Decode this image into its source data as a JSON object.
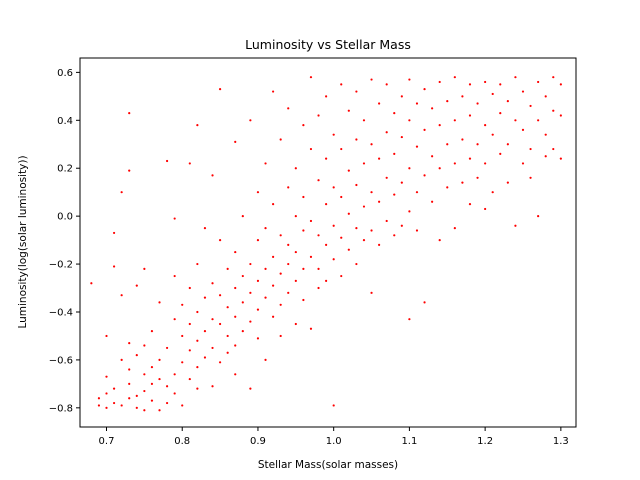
{
  "chart_data": {
    "type": "scatter",
    "title": "Luminosity vs Stellar Mass",
    "xlabel": "Stellar Mass(solar masses)",
    "ylabel": "Luminosity(log(solar luminosity))",
    "xlim": [
      0.665,
      1.32
    ],
    "ylim": [
      -0.88,
      0.66
    ],
    "xticks": [
      0.7,
      0.8,
      0.9,
      1.0,
      1.1,
      1.2,
      1.3
    ],
    "xtick_labels": [
      "0.7",
      "0.8",
      "0.9",
      "1.0",
      "1.1",
      "1.2",
      "1.3"
    ],
    "yticks": [
      -0.8,
      -0.6,
      -0.4,
      -0.2,
      0.0,
      0.2,
      0.4,
      0.6
    ],
    "ytick_labels": [
      "−0.8",
      "−0.6",
      "−0.4",
      "−0.2",
      "0.0",
      "0.2",
      "0.4",
      "0.6"
    ],
    "grid": false,
    "marker_color": "#ff0000",
    "series": [
      {
        "values": [
          {
            "x": 0.68,
            "y": -0.28
          },
          {
            "x": 0.69,
            "y": -0.79
          },
          {
            "x": 0.69,
            "y": -0.76
          },
          {
            "x": 0.7,
            "y": -0.8
          },
          {
            "x": 0.7,
            "y": -0.74
          },
          {
            "x": 0.7,
            "y": -0.67
          },
          {
            "x": 0.7,
            "y": -0.5
          },
          {
            "x": 0.71,
            "y": -0.21
          },
          {
            "x": 0.71,
            "y": -0.07
          },
          {
            "x": 0.71,
            "y": -0.78
          },
          {
            "x": 0.71,
            "y": -0.72
          },
          {
            "x": 0.72,
            "y": 0.1
          },
          {
            "x": 0.72,
            "y": -0.6
          },
          {
            "x": 0.72,
            "y": -0.79
          },
          {
            "x": 0.72,
            "y": -0.33
          },
          {
            "x": 0.73,
            "y": 0.43
          },
          {
            "x": 0.73,
            "y": 0.19
          },
          {
            "x": 0.73,
            "y": -0.76
          },
          {
            "x": 0.73,
            "y": -0.7
          },
          {
            "x": 0.73,
            "y": -0.64
          },
          {
            "x": 0.73,
            "y": -0.53
          },
          {
            "x": 0.74,
            "y": -0.8
          },
          {
            "x": 0.74,
            "y": -0.75
          },
          {
            "x": 0.74,
            "y": -0.58
          },
          {
            "x": 0.74,
            "y": -0.29
          },
          {
            "x": 0.75,
            "y": -0.22
          },
          {
            "x": 0.75,
            "y": -0.81
          },
          {
            "x": 0.75,
            "y": -0.73
          },
          {
            "x": 0.75,
            "y": -0.66
          },
          {
            "x": 0.75,
            "y": -0.54
          },
          {
            "x": 0.76,
            "y": -0.48
          },
          {
            "x": 0.76,
            "y": -0.63
          },
          {
            "x": 0.76,
            "y": -0.77
          },
          {
            "x": 0.76,
            "y": -0.7
          },
          {
            "x": 0.77,
            "y": -0.81
          },
          {
            "x": 0.77,
            "y": -0.68
          },
          {
            "x": 0.77,
            "y": -0.6
          },
          {
            "x": 0.77,
            "y": -0.36
          },
          {
            "x": 0.78,
            "y": 0.23
          },
          {
            "x": 0.78,
            "y": -0.78
          },
          {
            "x": 0.78,
            "y": -0.71
          },
          {
            "x": 0.78,
            "y": -0.55
          },
          {
            "x": 0.79,
            "y": -0.01
          },
          {
            "x": 0.79,
            "y": -0.25
          },
          {
            "x": 0.79,
            "y": -0.43
          },
          {
            "x": 0.79,
            "y": -0.66
          },
          {
            "x": 0.79,
            "y": -0.74
          },
          {
            "x": 0.8,
            "y": -0.61
          },
          {
            "x": 0.8,
            "y": -0.5
          },
          {
            "x": 0.8,
            "y": -0.79
          },
          {
            "x": 0.8,
            "y": -0.37
          },
          {
            "x": 0.81,
            "y": 0.22
          },
          {
            "x": 0.81,
            "y": -0.3
          },
          {
            "x": 0.81,
            "y": -0.45
          },
          {
            "x": 0.81,
            "y": -0.56
          },
          {
            "x": 0.81,
            "y": -0.68
          },
          {
            "x": 0.82,
            "y": 0.38
          },
          {
            "x": 0.82,
            "y": -0.2
          },
          {
            "x": 0.82,
            "y": -0.4
          },
          {
            "x": 0.82,
            "y": -0.52
          },
          {
            "x": 0.82,
            "y": -0.63
          },
          {
            "x": 0.82,
            "y": -0.72
          },
          {
            "x": 0.83,
            "y": -0.05
          },
          {
            "x": 0.83,
            "y": -0.34
          },
          {
            "x": 0.83,
            "y": -0.48
          },
          {
            "x": 0.83,
            "y": -0.59
          },
          {
            "x": 0.84,
            "y": 0.17
          },
          {
            "x": 0.84,
            "y": -0.28
          },
          {
            "x": 0.84,
            "y": -0.43
          },
          {
            "x": 0.84,
            "y": -0.55
          },
          {
            "x": 0.84,
            "y": -0.71
          },
          {
            "x": 0.85,
            "y": 0.53
          },
          {
            "x": 0.85,
            "y": -0.1
          },
          {
            "x": 0.85,
            "y": -0.33
          },
          {
            "x": 0.85,
            "y": -0.45
          },
          {
            "x": 0.85,
            "y": -0.61
          },
          {
            "x": 0.86,
            "y": -0.22
          },
          {
            "x": 0.86,
            "y": -0.38
          },
          {
            "x": 0.86,
            "y": -0.5
          },
          {
            "x": 0.86,
            "y": -0.57
          },
          {
            "x": 0.87,
            "y": 0.31
          },
          {
            "x": 0.87,
            "y": -0.15
          },
          {
            "x": 0.87,
            "y": -0.3
          },
          {
            "x": 0.87,
            "y": -0.42
          },
          {
            "x": 0.87,
            "y": -0.54
          },
          {
            "x": 0.87,
            "y": -0.66
          },
          {
            "x": 0.88,
            "y": 0.0
          },
          {
            "x": 0.88,
            "y": -0.25
          },
          {
            "x": 0.88,
            "y": -0.36
          },
          {
            "x": 0.88,
            "y": -0.48
          },
          {
            "x": 0.89,
            "y": 0.4
          },
          {
            "x": 0.89,
            "y": -0.2
          },
          {
            "x": 0.89,
            "y": -0.32
          },
          {
            "x": 0.89,
            "y": -0.44
          },
          {
            "x": 0.89,
            "y": -0.72
          },
          {
            "x": 0.9,
            "y": 0.1
          },
          {
            "x": 0.9,
            "y": -0.1
          },
          {
            "x": 0.9,
            "y": -0.27
          },
          {
            "x": 0.9,
            "y": -0.39
          },
          {
            "x": 0.9,
            "y": -0.51
          },
          {
            "x": 0.91,
            "y": 0.22
          },
          {
            "x": 0.91,
            "y": -0.05
          },
          {
            "x": 0.91,
            "y": -0.22
          },
          {
            "x": 0.91,
            "y": -0.34
          },
          {
            "x": 0.91,
            "y": -0.6
          },
          {
            "x": 0.92,
            "y": 0.52
          },
          {
            "x": 0.92,
            "y": 0.05
          },
          {
            "x": 0.92,
            "y": -0.17
          },
          {
            "x": 0.92,
            "y": -0.29
          },
          {
            "x": 0.92,
            "y": -0.42
          },
          {
            "x": 0.93,
            "y": 0.32
          },
          {
            "x": 0.93,
            "y": -0.08
          },
          {
            "x": 0.93,
            "y": -0.24
          },
          {
            "x": 0.93,
            "y": -0.37
          },
          {
            "x": 0.93,
            "y": -0.5
          },
          {
            "x": 0.94,
            "y": 0.45
          },
          {
            "x": 0.94,
            "y": 0.12
          },
          {
            "x": 0.94,
            "y": -0.12
          },
          {
            "x": 0.94,
            "y": -0.2
          },
          {
            "x": 0.94,
            "y": -0.32
          },
          {
            "x": 0.95,
            "y": 0.2
          },
          {
            "x": 0.95,
            "y": 0.0
          },
          {
            "x": 0.95,
            "y": -0.15
          },
          {
            "x": 0.95,
            "y": -0.27
          },
          {
            "x": 0.95,
            "y": -0.45
          },
          {
            "x": 0.96,
            "y": 0.38
          },
          {
            "x": 0.96,
            "y": 0.08
          },
          {
            "x": 0.96,
            "y": -0.06
          },
          {
            "x": 0.96,
            "y": -0.22
          },
          {
            "x": 0.96,
            "y": -0.35
          },
          {
            "x": 0.97,
            "y": 0.58
          },
          {
            "x": 0.97,
            "y": 0.28
          },
          {
            "x": 0.97,
            "y": -0.02
          },
          {
            "x": 0.97,
            "y": -0.17
          },
          {
            "x": 0.97,
            "y": -0.47
          },
          {
            "x": 0.98,
            "y": 0.42
          },
          {
            "x": 0.98,
            "y": 0.15
          },
          {
            "x": 0.98,
            "y": -0.08
          },
          {
            "x": 0.98,
            "y": -0.22
          },
          {
            "x": 0.98,
            "y": -0.3
          },
          {
            "x": 0.99,
            "y": 0.5
          },
          {
            "x": 0.99,
            "y": 0.24
          },
          {
            "x": 0.99,
            "y": 0.05
          },
          {
            "x": 0.99,
            "y": -0.12
          },
          {
            "x": 0.99,
            "y": -0.27
          },
          {
            "x": 1.0,
            "y": 0.34
          },
          {
            "x": 1.0,
            "y": 0.12
          },
          {
            "x": 1.0,
            "y": -0.04
          },
          {
            "x": 1.0,
            "y": -0.18
          },
          {
            "x": 1.0,
            "y": -0.79
          },
          {
            "x": 1.01,
            "y": 0.55
          },
          {
            "x": 1.01,
            "y": 0.28
          },
          {
            "x": 1.01,
            "y": 0.08
          },
          {
            "x": 1.01,
            "y": -0.09
          },
          {
            "x": 1.01,
            "y": -0.25
          },
          {
            "x": 1.02,
            "y": 0.44
          },
          {
            "x": 1.02,
            "y": 0.19
          },
          {
            "x": 1.02,
            "y": 0.01
          },
          {
            "x": 1.02,
            "y": -0.14
          },
          {
            "x": 1.03,
            "y": 0.52
          },
          {
            "x": 1.03,
            "y": 0.32
          },
          {
            "x": 1.03,
            "y": 0.13
          },
          {
            "x": 1.03,
            "y": -0.05
          },
          {
            "x": 1.03,
            "y": -0.2
          },
          {
            "x": 1.04,
            "y": 0.4
          },
          {
            "x": 1.04,
            "y": 0.22
          },
          {
            "x": 1.04,
            "y": 0.04
          },
          {
            "x": 1.04,
            "y": -0.1
          },
          {
            "x": 1.05,
            "y": 0.57
          },
          {
            "x": 1.05,
            "y": 0.3
          },
          {
            "x": 1.05,
            "y": 0.1
          },
          {
            "x": 1.05,
            "y": -0.06
          },
          {
            "x": 1.05,
            "y": -0.32
          },
          {
            "x": 1.06,
            "y": 0.47
          },
          {
            "x": 1.06,
            "y": 0.24
          },
          {
            "x": 1.06,
            "y": 0.06
          },
          {
            "x": 1.06,
            "y": -0.12
          },
          {
            "x": 1.07,
            "y": 0.55
          },
          {
            "x": 1.07,
            "y": 0.35
          },
          {
            "x": 1.07,
            "y": 0.16
          },
          {
            "x": 1.07,
            "y": -0.02
          },
          {
            "x": 1.08,
            "y": 0.43
          },
          {
            "x": 1.08,
            "y": 0.26
          },
          {
            "x": 1.08,
            "y": 0.09
          },
          {
            "x": 1.08,
            "y": -0.08
          },
          {
            "x": 1.09,
            "y": 0.5
          },
          {
            "x": 1.09,
            "y": 0.33
          },
          {
            "x": 1.09,
            "y": 0.14
          },
          {
            "x": 1.09,
            "y": -0.04
          },
          {
            "x": 1.1,
            "y": 0.57
          },
          {
            "x": 1.1,
            "y": 0.4
          },
          {
            "x": 1.1,
            "y": 0.2
          },
          {
            "x": 1.1,
            "y": 0.02
          },
          {
            "x": 1.1,
            "y": -0.43
          },
          {
            "x": 1.11,
            "y": 0.47
          },
          {
            "x": 1.11,
            "y": 0.29
          },
          {
            "x": 1.11,
            "y": 0.1
          },
          {
            "x": 1.11,
            "y": -0.06
          },
          {
            "x": 1.12,
            "y": 0.53
          },
          {
            "x": 1.12,
            "y": 0.36
          },
          {
            "x": 1.12,
            "y": 0.17
          },
          {
            "x": 1.12,
            "y": -0.36
          },
          {
            "x": 1.13,
            "y": 0.45
          },
          {
            "x": 1.13,
            "y": 0.25
          },
          {
            "x": 1.13,
            "y": 0.06
          },
          {
            "x": 1.14,
            "y": 0.56
          },
          {
            "x": 1.14,
            "y": 0.38
          },
          {
            "x": 1.14,
            "y": 0.2
          },
          {
            "x": 1.14,
            "y": -0.1
          },
          {
            "x": 1.15,
            "y": 0.48
          },
          {
            "x": 1.15,
            "y": 0.3
          },
          {
            "x": 1.15,
            "y": 0.12
          },
          {
            "x": 1.16,
            "y": 0.58
          },
          {
            "x": 1.16,
            "y": 0.4
          },
          {
            "x": 1.16,
            "y": 0.22
          },
          {
            "x": 1.16,
            "y": -0.05
          },
          {
            "x": 1.17,
            "y": 0.5
          },
          {
            "x": 1.17,
            "y": 0.32
          },
          {
            "x": 1.17,
            "y": 0.14
          },
          {
            "x": 1.18,
            "y": 0.55
          },
          {
            "x": 1.18,
            "y": 0.42
          },
          {
            "x": 1.18,
            "y": 0.24
          },
          {
            "x": 1.18,
            "y": 0.05
          },
          {
            "x": 1.19,
            "y": 0.47
          },
          {
            "x": 1.19,
            "y": 0.3
          },
          {
            "x": 1.19,
            "y": 0.16
          },
          {
            "x": 1.2,
            "y": 0.56
          },
          {
            "x": 1.2,
            "y": 0.38
          },
          {
            "x": 1.2,
            "y": 0.22
          },
          {
            "x": 1.2,
            "y": 0.03
          },
          {
            "x": 1.21,
            "y": 0.51
          },
          {
            "x": 1.21,
            "y": 0.34
          },
          {
            "x": 1.21,
            "y": 0.1
          },
          {
            "x": 1.22,
            "y": 0.55
          },
          {
            "x": 1.22,
            "y": 0.43
          },
          {
            "x": 1.22,
            "y": 0.26
          },
          {
            "x": 1.23,
            "y": 0.48
          },
          {
            "x": 1.23,
            "y": 0.3
          },
          {
            "x": 1.23,
            "y": 0.14
          },
          {
            "x": 1.24,
            "y": 0.58
          },
          {
            "x": 1.24,
            "y": 0.4
          },
          {
            "x": 1.24,
            "y": -0.04
          },
          {
            "x": 1.25,
            "y": 0.52
          },
          {
            "x": 1.25,
            "y": 0.36
          },
          {
            "x": 1.25,
            "y": 0.22
          },
          {
            "x": 1.26,
            "y": 0.46
          },
          {
            "x": 1.26,
            "y": 0.28
          },
          {
            "x": 1.26,
            "y": 0.16
          },
          {
            "x": 1.27,
            "y": 0.56
          },
          {
            "x": 1.27,
            "y": 0.4
          },
          {
            "x": 1.27,
            "y": 0.0
          },
          {
            "x": 1.28,
            "y": 0.5
          },
          {
            "x": 1.28,
            "y": 0.34
          },
          {
            "x": 1.28,
            "y": 0.25
          },
          {
            "x": 1.29,
            "y": 0.58
          },
          {
            "x": 1.29,
            "y": 0.44
          },
          {
            "x": 1.29,
            "y": 0.28
          },
          {
            "x": 1.3,
            "y": 0.55
          },
          {
            "x": 1.3,
            "y": 0.42
          },
          {
            "x": 1.3,
            "y": 0.24
          }
        ]
      }
    ]
  }
}
